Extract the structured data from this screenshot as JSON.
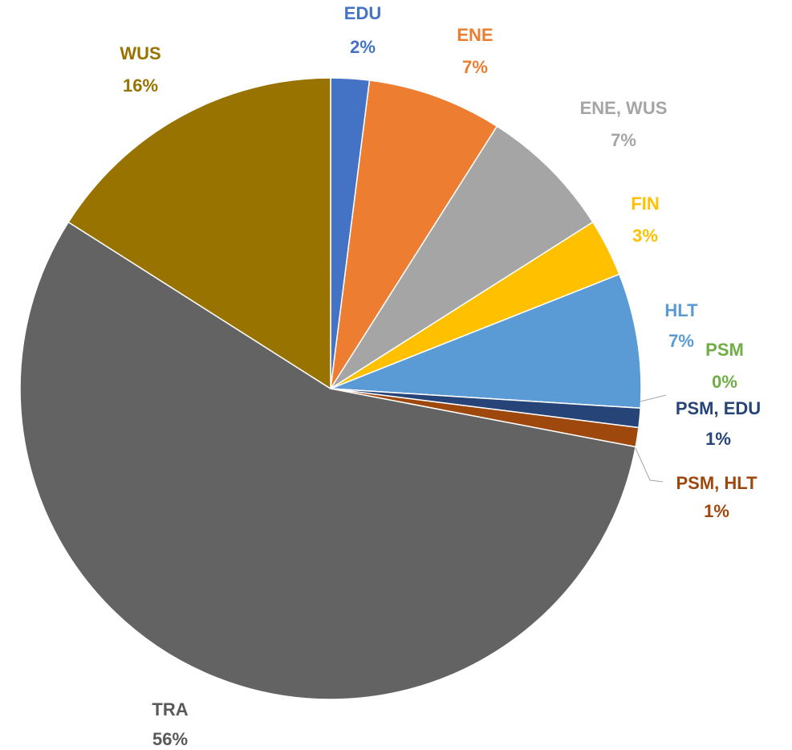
{
  "chart_data": {
    "type": "pie",
    "categories": [
      "EDU",
      "ENE",
      "ENE, WUS",
      "FIN",
      "HLT",
      "PSM",
      "PSM, EDU",
      "PSM, HLT",
      "TRA",
      "WUS"
    ],
    "values": [
      2,
      7,
      7,
      3,
      7,
      0,
      1,
      1,
      56,
      16
    ],
    "value_labels": [
      "2%",
      "7%",
      "7%",
      "3%",
      "7%",
      "0%",
      "1%",
      "1%",
      "56%",
      "16%"
    ],
    "colors": [
      "#4472c4",
      "#ed7d31",
      "#a5a5a5",
      "#ffc000",
      "#5b9bd5",
      "#70ad47",
      "#264478",
      "#9e480e",
      "#636363",
      "#997300"
    ]
  }
}
